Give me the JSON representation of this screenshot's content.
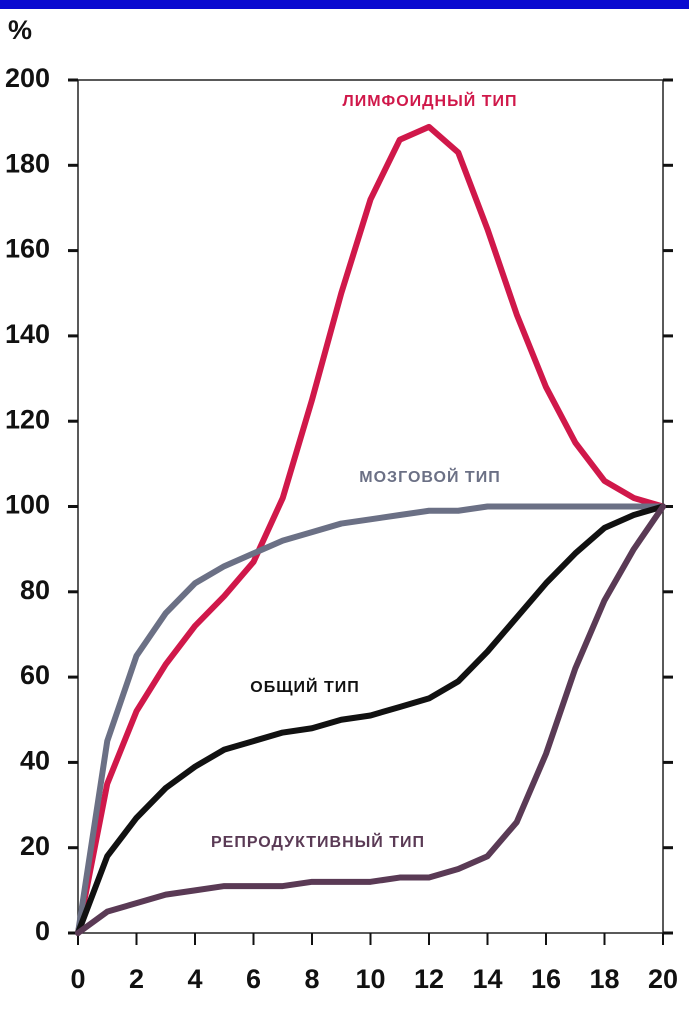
{
  "chart_data": {
    "type": "line",
    "y_label": "%",
    "x": [
      0,
      1,
      2,
      3,
      4,
      5,
      6,
      7,
      8,
      9,
      10,
      11,
      12,
      13,
      14,
      15,
      16,
      17,
      18,
      19,
      20
    ],
    "series": [
      {
        "name": "ЛИМФОИДНЫЙ ТИП",
        "color": "#d0184a",
        "values": [
          0,
          35,
          52,
          63,
          72,
          79,
          87,
          102,
          125,
          150,
          172,
          186,
          189,
          183,
          165,
          145,
          128,
          115,
          106,
          102,
          100
        ]
      },
      {
        "name": "МОЗГОВОЙ ТИП",
        "color": "#6b7085",
        "values": [
          0,
          45,
          65,
          75,
          82,
          86,
          89,
          92,
          94,
          96,
          97,
          98,
          99,
          99,
          100,
          100,
          100,
          100,
          100,
          100,
          100
        ]
      },
      {
        "name": "ОБЩИЙ ТИП",
        "color": "#111111",
        "values": [
          0,
          18,
          27,
          34,
          39,
          43,
          45,
          47,
          48,
          50,
          51,
          53,
          55,
          59,
          66,
          74,
          82,
          89,
          95,
          98,
          100
        ]
      },
      {
        "name": "РЕПРОДУКТИВНЫЙ ТИП",
        "color": "#5a3a55",
        "values": [
          0,
          5,
          7,
          9,
          10,
          11,
          11,
          11,
          12,
          12,
          12,
          13,
          13,
          15,
          18,
          26,
          42,
          62,
          78,
          90,
          100
        ]
      }
    ],
    "xlim": [
      0,
      20
    ],
    "xticks": [
      0,
      2,
      4,
      6,
      8,
      10,
      12,
      14,
      16,
      18,
      20
    ],
    "ylim": [
      0,
      200
    ],
    "yticks": [
      0,
      20,
      40,
      60,
      80,
      100,
      120,
      140,
      160,
      180,
      200
    ]
  }
}
